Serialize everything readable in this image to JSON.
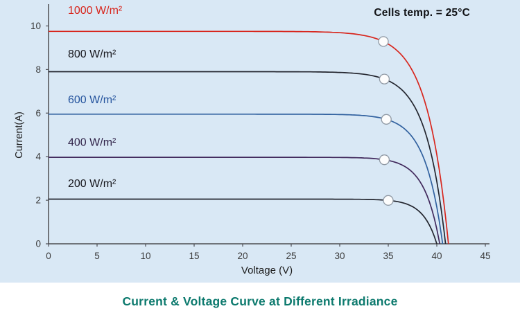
{
  "annotation": {
    "text": "Cells temp. = 25°C"
  },
  "axes": {
    "xlabel": "Voltage (V)",
    "ylabel": "Current(A)"
  },
  "footer": {
    "title": "Current & Voltage Curve at Different Irradiance",
    "title_color": "#0d7a6e"
  },
  "chart_data": {
    "type": "line",
    "title": "Current & Voltage Curve at Different Irradiance",
    "xlabel": "Voltage (V)",
    "ylabel": "Current(A)",
    "xlim": [
      0,
      45
    ],
    "ylim": [
      0,
      11
    ],
    "xticks": [
      0,
      5,
      10,
      15,
      20,
      25,
      30,
      35,
      40,
      45
    ],
    "yticks": [
      0,
      2,
      4,
      6,
      8,
      10
    ],
    "grid": false,
    "annotation": "Cells temp. = 25°C",
    "marker_style": {
      "fill": "#fdfdfd",
      "stroke": "#9099a4",
      "radius": 7
    },
    "series": [
      {
        "name": "1000 W/m²",
        "color": "#d8251c",
        "label_color": "#d8251c",
        "isc": 9.75,
        "voc": 41.2,
        "knee": 2.2,
        "marker": {
          "v": 34.5,
          "i": 9.3
        },
        "label_pos": [
          2,
          10.55
        ]
      },
      {
        "name": "800 W/m²",
        "color": "#23252e",
        "label_color": "#16161c",
        "isc": 7.9,
        "voc": 40.9,
        "knee": 2.0,
        "marker": {
          "v": 34.6,
          "i": 7.55
        },
        "label_pos": [
          2,
          8.55
        ]
      },
      {
        "name": "600 W/m²",
        "color": "#31619f",
        "label_color": "#24539d",
        "isc": 5.95,
        "voc": 40.6,
        "knee": 1.8,
        "marker": {
          "v": 34.8,
          "i": 5.7
        },
        "label_pos": [
          2,
          6.45
        ]
      },
      {
        "name": "400 W/m²",
        "color": "#41295c",
        "label_color": "#2d1f45",
        "isc": 3.97,
        "voc": 40.3,
        "knee": 1.6,
        "marker": {
          "v": 34.6,
          "i": 3.86
        },
        "label_pos": [
          2,
          4.5
        ]
      },
      {
        "name": "200 W/m²",
        "color": "#23252e",
        "label_color": "#16161c",
        "isc": 2.05,
        "voc": 40.0,
        "knee": 1.4,
        "marker": {
          "v": 35.0,
          "i": 1.99
        },
        "label_pos": [
          2,
          2.6
        ]
      }
    ]
  }
}
